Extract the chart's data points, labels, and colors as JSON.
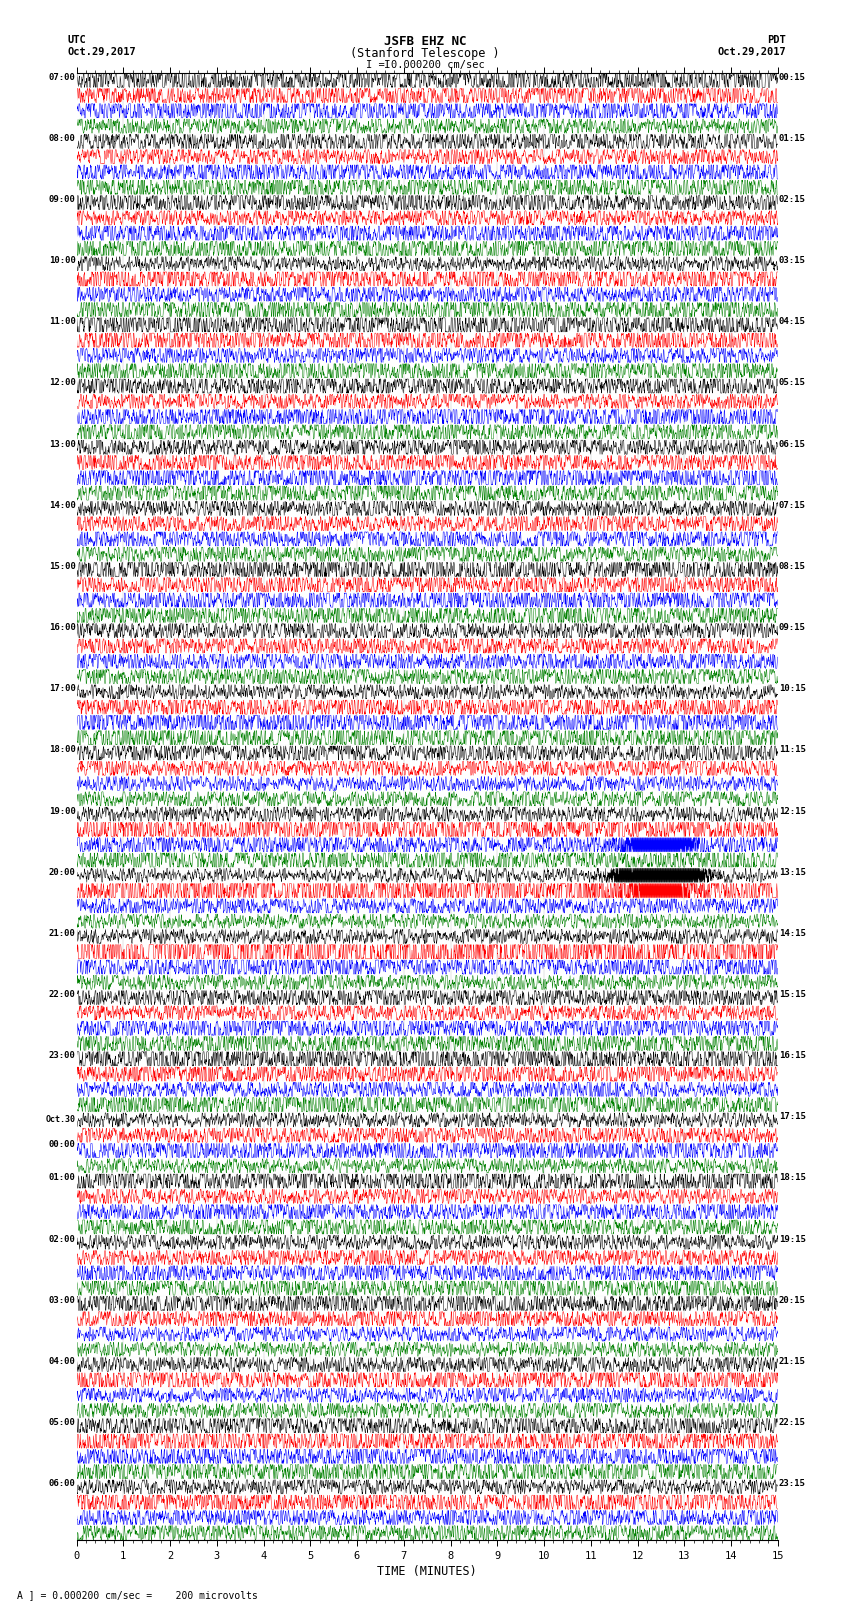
{
  "title_line1": "JSFB EHZ NC",
  "title_line2": "(Stanford Telescope )",
  "scale_label": "I = 0.000200 cm/sec",
  "footer_label": "A ] = 0.000200 cm/sec =    200 microvolts",
  "utc_label": "UTC",
  "pdt_label": "PDT",
  "date_left": "Oct.29,2017",
  "date_right": "Oct.29,2017",
  "xlabel": "TIME (MINUTES)",
  "colors": [
    "black",
    "red",
    "blue",
    "green"
  ],
  "bg_color": "white",
  "n_hours": 23,
  "xlim": [
    0,
    15
  ],
  "left_labels": [
    [
      0,
      "07:00"
    ],
    [
      1,
      "08:00"
    ],
    [
      2,
      "09:00"
    ],
    [
      3,
      "10:00"
    ],
    [
      4,
      "11:00"
    ],
    [
      5,
      "12:00"
    ],
    [
      6,
      "13:00"
    ],
    [
      7,
      "14:00"
    ],
    [
      8,
      "15:00"
    ],
    [
      9,
      "16:00"
    ],
    [
      10,
      "17:00"
    ],
    [
      11,
      "18:00"
    ],
    [
      12,
      "19:00"
    ],
    [
      13,
      "20:00"
    ],
    [
      14,
      "21:00"
    ],
    [
      15,
      "22:00"
    ],
    [
      16,
      "23:00"
    ],
    [
      17,
      "Oct.30\n00:00"
    ],
    [
      18,
      "01:00"
    ],
    [
      19,
      "02:00"
    ],
    [
      20,
      "03:00"
    ],
    [
      21,
      "04:00"
    ],
    [
      22,
      "05:00"
    ],
    [
      23,
      "06:00"
    ]
  ],
  "right_labels": [
    [
      0,
      "00:15"
    ],
    [
      1,
      "01:15"
    ],
    [
      2,
      "02:15"
    ],
    [
      3,
      "03:15"
    ],
    [
      4,
      "04:15"
    ],
    [
      5,
      "05:15"
    ],
    [
      6,
      "06:15"
    ],
    [
      7,
      "07:15"
    ],
    [
      8,
      "08:15"
    ],
    [
      9,
      "09:15"
    ],
    [
      10,
      "10:15"
    ],
    [
      11,
      "11:15"
    ],
    [
      12,
      "12:15"
    ],
    [
      13,
      "13:15"
    ],
    [
      14,
      "14:15"
    ],
    [
      15,
      "15:15"
    ],
    [
      16,
      "16:15"
    ],
    [
      17,
      "17:15"
    ],
    [
      18,
      "18:15"
    ],
    [
      19,
      "19:15"
    ],
    [
      20,
      "20:15"
    ],
    [
      21,
      "21:15"
    ],
    [
      22,
      "22:15"
    ],
    [
      23,
      "23:15"
    ]
  ],
  "earthquake_group": 13,
  "earthquake_minute": 12.45,
  "eq_spike_amplitude": 6.0,
  "base_amplitude": 0.28,
  "trace_linewidth": 0.35
}
